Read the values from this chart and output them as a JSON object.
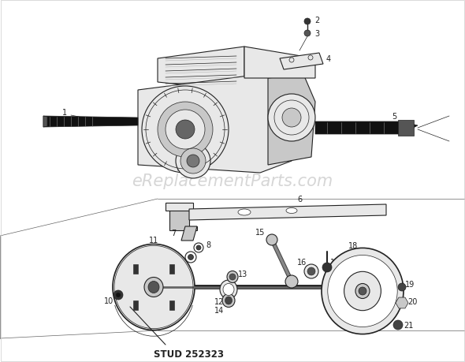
{
  "bg_color": "#ffffff",
  "diagram_color": "#222222",
  "watermark_text": "eReplacementParts.com",
  "watermark_color": "#bbbbbb",
  "watermark_fontsize": 15,
  "stud_label": "STUD 252323",
  "label_fontsize": 7,
  "figsize": [
    5.9,
    4.6
  ],
  "dpi": 100,
  "border_color": "#888888",
  "shaft_color": "#111111",
  "part_color": "#333333",
  "fill_light": "#e8e8e8",
  "fill_mid": "#c8c8c8",
  "fill_dark": "#999999"
}
